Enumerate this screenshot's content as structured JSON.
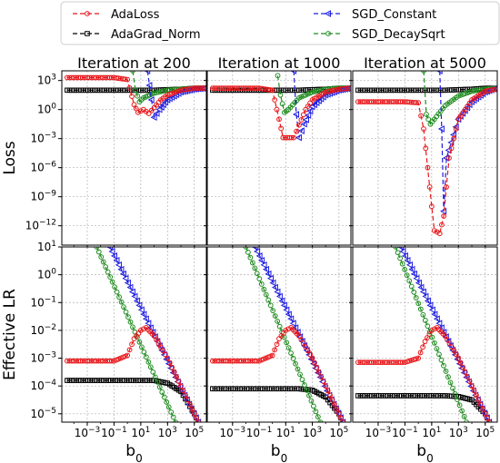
{
  "legend": {
    "placement": "top",
    "entries": [
      {
        "name": "AdaLoss",
        "color": "#e8161a",
        "marker": "circle"
      },
      {
        "name": "AdaGrad_Norm",
        "color": "#000000",
        "marker": "square"
      },
      {
        "name": "SGD_Constant",
        "color": "#1f1fe0",
        "marker": "triangle-left"
      },
      {
        "name": "SGD_DecaySqrt",
        "color": "#1f8c1f",
        "marker": "circle"
      }
    ]
  },
  "chart_data": {
    "type": "line",
    "x_scale": "log",
    "y_scale": "log",
    "grid": true,
    "xlabel": "b0",
    "xticks": [
      "10^-3",
      "10^-1",
      "10^1",
      "10^3",
      "10^5"
    ],
    "columns": [
      "Iteration at 200",
      "Iteration at 1000",
      "Iteration at 5000"
    ],
    "rows": [
      {
        "ylabel": "Loss",
        "ylim_exp": [
          -14,
          4
        ],
        "yticks": [
          "10^3",
          "10^0",
          "10^-3",
          "10^-6",
          "10^-9",
          "10^-12"
        ],
        "panels": [
          {
            "title": "Iteration at 200",
            "series": {
              "AdaLoss": [
                [
                  -4.5,
                  3.3
                ],
                [
                  -1,
                  3.3
                ],
                [
                  0,
                  3.1
                ],
                [
                  0.5,
                  0.5
                ],
                [
                  0.8,
                  -0.3
                ],
                [
                  1.2,
                  0.0
                ],
                [
                  1.6,
                  -0.4
                ],
                [
                  2,
                  0.2
                ],
                [
                  2.5,
                  1.0
                ],
                [
                  3,
                  1.5
                ],
                [
                  4,
                  2.0
                ],
                [
                  5,
                  2.2
                ],
                [
                  5.8,
                  2.2
                ]
              ],
              "AdaGrad_Norm": [
                [
                  -4.5,
                  2.0
                ],
                [
                  0,
                  2.0
                ],
                [
                  2,
                  2.0
                ],
                [
                  3,
                  2.05
                ],
                [
                  4,
                  2.1
                ],
                [
                  5,
                  2.2
                ],
                [
                  5.8,
                  2.2
                ]
              ],
              "SGD_Constant": [
                [
                  1.5,
                  4.0
                ],
                [
                  1.8,
                  1.0
                ],
                [
                  2.0,
                  -0.8
                ],
                [
                  2.4,
                  0.0
                ],
                [
                  3,
                  1.0
                ],
                [
                  4,
                  1.8
                ],
                [
                  5,
                  2.1
                ],
                [
                  5.8,
                  2.2
                ]
              ],
              "SGD_DecaySqrt": [
                [
                  0.4,
                  4.0
                ],
                [
                  0.6,
                  2.0
                ],
                [
                  0.9,
                  0.8
                ],
                [
                  1.2,
                  1.2
                ],
                [
                  2,
                  1.7
                ],
                [
                  3,
                  2.0
                ],
                [
                  4,
                  2.1
                ],
                [
                  5,
                  2.2
                ],
                [
                  5.8,
                  2.2
                ]
              ]
            }
          },
          {
            "title": "Iteration at 1000",
            "series": {
              "AdaLoss": [
                [
                  -4.5,
                  2.2
                ],
                [
                  -1,
                  2.2
                ],
                [
                  0,
                  2.0
                ],
                [
                  0.5,
                  -1.0
                ],
                [
                  0.8,
                  -2.9
                ],
                [
                  1.6,
                  -2.9
                ],
                [
                  2.0,
                  -1.6
                ],
                [
                  2.5,
                  0.0
                ],
                [
                  3,
                  1.0
                ],
                [
                  4,
                  1.8
                ],
                [
                  5,
                  2.1
                ],
                [
                  5.8,
                  2.2
                ]
              ],
              "AdaGrad_Norm": [
                [
                  -4.5,
                  2.0
                ],
                [
                  0,
                  2.0
                ],
                [
                  2,
                  2.0
                ],
                [
                  3,
                  2.05
                ],
                [
                  4,
                  2.1
                ],
                [
                  5,
                  2.2
                ],
                [
                  5.8,
                  2.2
                ]
              ],
              "SGD_Constant": [
                [
                  1.6,
                  4.0
                ],
                [
                  1.8,
                  -0.5
                ],
                [
                  2.0,
                  -2.9
                ],
                [
                  2.4,
                  -1.5
                ],
                [
                  3,
                  0.3
                ],
                [
                  4,
                  1.5
                ],
                [
                  5,
                  2.0
                ],
                [
                  5.8,
                  2.2
                ]
              ],
              "SGD_DecaySqrt": [
                [
                  0.4,
                  3.5
                ],
                [
                  0.6,
                  1.5
                ],
                [
                  0.9,
                  -0.3
                ],
                [
                  1.2,
                  0.0
                ],
                [
                  2,
                  1.2
                ],
                [
                  3,
                  1.8
                ],
                [
                  4,
                  2.1
                ],
                [
                  5,
                  2.2
                ],
                [
                  5.8,
                  2.2
                ]
              ]
            }
          },
          {
            "title": "Iteration at 5000",
            "series": {
              "AdaLoss": [
                [
                  -4.5,
                  0.8
                ],
                [
                  -1,
                  0.8
                ],
                [
                  0,
                  0.7
                ],
                [
                  0.4,
                  -2.0
                ],
                [
                  0.7,
                  -6.0
                ],
                [
                  1.0,
                  -10.0
                ],
                [
                  1.2,
                  -12.5
                ],
                [
                  1.6,
                  -12.8
                ],
                [
                  1.9,
                  -11.0
                ],
                [
                  2.3,
                  -5.0
                ],
                [
                  3,
                  -1.0
                ],
                [
                  4,
                  1.0
                ],
                [
                  5,
                  1.9
                ],
                [
                  5.8,
                  2.1
                ]
              ],
              "AdaGrad_Norm": [
                [
                  -4.5,
                  2.0
                ],
                [
                  0,
                  2.0
                ],
                [
                  2,
                  2.0
                ],
                [
                  3,
                  2.05
                ],
                [
                  4,
                  2.1
                ],
                [
                  5,
                  2.2
                ],
                [
                  5.8,
                  2.2
                ]
              ],
              "SGD_Constant": [
                [
                  1.6,
                  4.0
                ],
                [
                  1.75,
                  -2.0
                ],
                [
                  1.9,
                  -10.5
                ],
                [
                  2.1,
                  -5.0
                ],
                [
                  3,
                  -1.0
                ],
                [
                  4,
                  0.8
                ],
                [
                  5,
                  1.8
                ],
                [
                  5.8,
                  2.2
                ]
              ],
              "SGD_DecaySqrt": [
                [
                  0.4,
                  4.0
                ],
                [
                  0.6,
                  -0.5
                ],
                [
                  0.9,
                  -1.5
                ],
                [
                  1.2,
                  -1.0
                ],
                [
                  2,
                  0.4
                ],
                [
                  3,
                  1.4
                ],
                [
                  4,
                  1.9
                ],
                [
                  5,
                  2.1
                ],
                [
                  5.8,
                  2.2
                ]
              ]
            }
          }
        ]
      },
      {
        "ylabel": "Effective LR",
        "ylim_exp": [
          -5.3,
          1
        ],
        "yticks": [
          "10^1",
          "10^0",
          "10^-1",
          "10^-2",
          "10^-3",
          "10^-4",
          "10^-5"
        ],
        "panels": [
          {
            "title": "",
            "series": {
              "AdaLoss": [
                [
                  -4.5,
                  -3.1
                ],
                [
                  -1,
                  -3.1
                ],
                [
                  0,
                  -2.9
                ],
                [
                  0.5,
                  -2.3
                ],
                [
                  1,
                  -2.0
                ],
                [
                  1.4,
                  -1.9
                ],
                [
                  2,
                  -2.2
                ],
                [
                  3,
                  -3.0
                ],
                [
                  4,
                  -4.0
                ],
                [
                  5,
                  -5.0
                ],
                [
                  5.3,
                  -5.3
                ]
              ],
              "AdaGrad_Norm": [
                [
                  -4.5,
                  -3.8
                ],
                [
                  2,
                  -3.8
                ],
                [
                  3,
                  -3.9
                ],
                [
                  4,
                  -4.2
                ],
                [
                  5,
                  -5.0
                ],
                [
                  5.3,
                  -5.3
                ]
              ],
              "SGD_Constant": [
                [
                  -1.3,
                  1.0
                ],
                [
                  5.3,
                  -5.3
                ]
              ],
              "SGD_DecaySqrt": [
                [
                  -2.3,
                  1.0
                ],
                [
                  3.6,
                  -5.3
                ]
              ]
            }
          },
          {
            "title": "",
            "series": {
              "AdaLoss": [
                [
                  -4.5,
                  -3.1
                ],
                [
                  -1,
                  -3.1
                ],
                [
                  0,
                  -2.9
                ],
                [
                  0.5,
                  -2.3
                ],
                [
                  1,
                  -2.0
                ],
                [
                  1.4,
                  -1.9
                ],
                [
                  2,
                  -2.2
                ],
                [
                  3,
                  -3.0
                ],
                [
                  4,
                  -4.0
                ],
                [
                  5,
                  -5.0
                ],
                [
                  5.3,
                  -5.3
                ]
              ],
              "AdaGrad_Norm": [
                [
                  -4.5,
                  -4.1
                ],
                [
                  2,
                  -4.1
                ],
                [
                  3,
                  -4.15
                ],
                [
                  4,
                  -4.4
                ],
                [
                  5,
                  -5.0
                ],
                [
                  5.3,
                  -5.3
                ]
              ],
              "SGD_Constant": [
                [
                  -1.3,
                  1.0
                ],
                [
                  5.3,
                  -5.3
                ]
              ],
              "SGD_DecaySqrt": [
                [
                  -2.0,
                  1.0
                ],
                [
                  3.6,
                  -5.3
                ]
              ]
            }
          },
          {
            "title": "",
            "series": {
              "AdaLoss": [
                [
                  -4.5,
                  -3.15
                ],
                [
                  -1,
                  -3.15
                ],
                [
                  0,
                  -3.0
                ],
                [
                  0.5,
                  -2.4
                ],
                [
                  1,
                  -2.0
                ],
                [
                  1.4,
                  -1.9
                ],
                [
                  2,
                  -2.2
                ],
                [
                  3,
                  -3.0
                ],
                [
                  4,
                  -4.0
                ],
                [
                  5,
                  -5.0
                ],
                [
                  5.3,
                  -5.3
                ]
              ],
              "AdaGrad_Norm": [
                [
                  -4.5,
                  -4.35
                ],
                [
                  2,
                  -4.35
                ],
                [
                  3,
                  -4.38
                ],
                [
                  4,
                  -4.5
                ],
                [
                  5,
                  -5.0
                ],
                [
                  5.3,
                  -5.3
                ]
              ],
              "SGD_Constant": [
                [
                  -1.3,
                  1.0
                ],
                [
                  5.3,
                  -5.3
                ]
              ],
              "SGD_DecaySqrt": [
                [
                  -1.7,
                  1.0
                ],
                [
                  3.6,
                  -5.3
                ]
              ]
            }
          }
        ]
      }
    ]
  }
}
